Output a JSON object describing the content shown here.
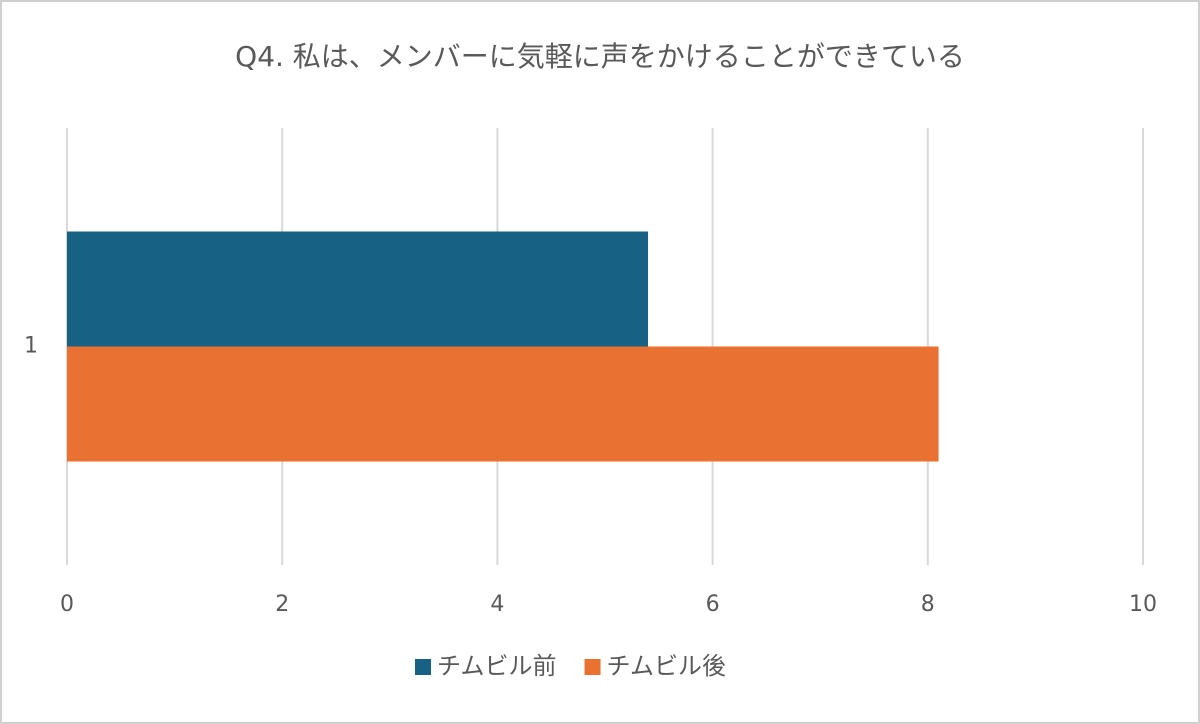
{
  "chart_data": {
    "type": "bar",
    "orientation": "horizontal",
    "title": "Q4. 私は、メンバーに気軽に声をかけることができている",
    "categories": [
      "1"
    ],
    "series": [
      {
        "name": "チムビル前",
        "color": "#176184",
        "values": [
          5.4
        ]
      },
      {
        "name": "チムビル後",
        "color": "#e97132",
        "values": [
          8.1
        ]
      }
    ],
    "xlim": [
      0,
      10
    ],
    "xticks": [
      0,
      2,
      4,
      6,
      8,
      10
    ],
    "grid": true,
    "legend": "bottom"
  }
}
